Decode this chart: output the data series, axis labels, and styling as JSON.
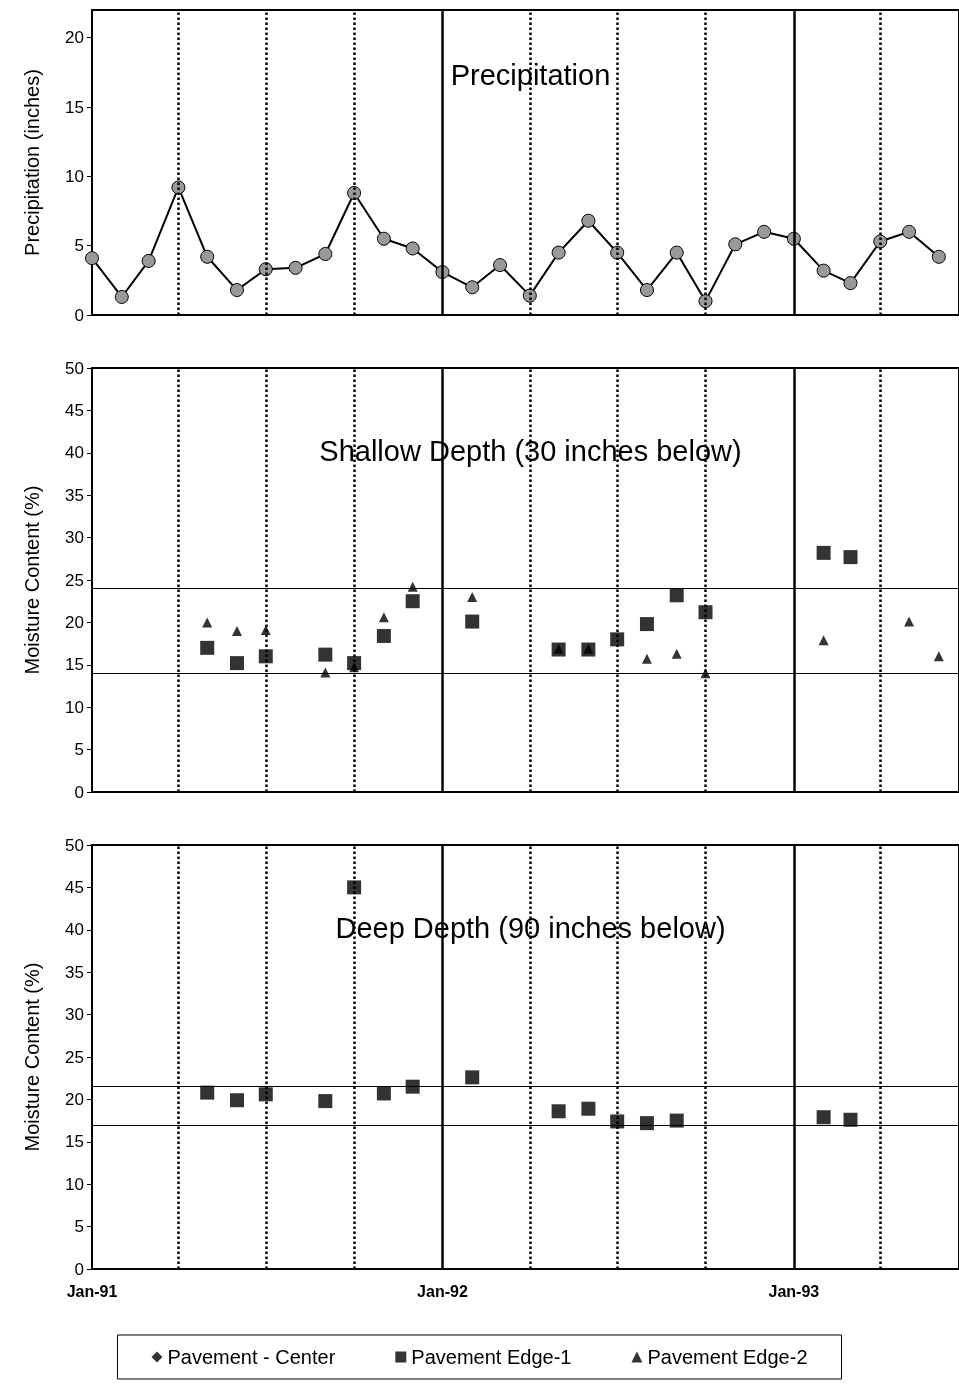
{
  "chart_data": [
    {
      "type": "line",
      "title": "Precipitation",
      "ylabel": "Precipitation (inches)",
      "xlim": [
        "1991-01",
        "1993-06-22"
      ],
      "ylim": [
        0,
        22
      ],
      "yticks": [
        0,
        5,
        10,
        15,
        20
      ],
      "tick_labels": "y",
      "grid": false,
      "legend": false,
      "ref_lines": [
        {
          "axis": "x",
          "value": "1991-04",
          "line_style": "dotted"
        },
        {
          "axis": "x",
          "value": "1991-07",
          "line_style": "dotted"
        },
        {
          "axis": "x",
          "value": "1991-10",
          "line_style": "dotted"
        },
        {
          "axis": "x",
          "value": "1992-01",
          "line_style": "solid"
        },
        {
          "axis": "x",
          "value": "1992-04",
          "line_style": "dotted"
        },
        {
          "axis": "x",
          "value": "1992-07",
          "line_style": "dotted"
        },
        {
          "axis": "x",
          "value": "1992-10",
          "line_style": "dotted"
        },
        {
          "axis": "x",
          "value": "1993-01",
          "line_style": "solid"
        },
        {
          "axis": "x",
          "value": "1993-04",
          "line_style": "dotted"
        }
      ],
      "series": [
        {
          "color": "#999999",
          "marker": "circle",
          "line_style": "solid",
          "x": [
            "1991-01",
            "1991-02",
            "1991-03",
            "1991-04",
            "1991-05",
            "1991-06",
            "1991-07",
            "1991-08",
            "1991-09",
            "1991-10",
            "1991-11",
            "1991-12",
            "1992-01",
            "1992-02",
            "1992-03",
            "1992-04",
            "1992-05",
            "1992-06",
            "1992-07",
            "1992-08",
            "1992-09",
            "1992-10",
            "1992-11",
            "1992-12",
            "1993-01",
            "1993-02",
            "1993-03",
            "1993-04",
            "1993-05",
            "1993-06"
          ],
          "values": [
            4.1,
            1.3,
            3.9,
            9.2,
            4.2,
            1.8,
            3.3,
            3.4,
            4.4,
            8.8,
            5.5,
            4.8,
            3.1,
            2.0,
            3.6,
            1.4,
            4.5,
            6.8,
            4.5,
            1.8,
            4.5,
            1.0,
            5.1,
            6.0,
            5.5,
            3.2,
            2.3,
            5.3,
            6.0,
            4.2
          ]
        }
      ]
    },
    {
      "type": "scatter",
      "title": "Shallow Depth (30 inches below)",
      "ylabel": "Moisture Content (%)",
      "xlim": [
        "1991-01",
        "1993-06-22"
      ],
      "ylim": [
        0,
        50
      ],
      "yticks": [
        0,
        5,
        10,
        15,
        20,
        25,
        30,
        35,
        40,
        45,
        50
      ],
      "tick_labels": "y",
      "grid": false,
      "legend": false,
      "ref_lines": [
        {
          "axis": "y",
          "value": 24,
          "line_style": "solid"
        },
        {
          "axis": "y",
          "value": 14,
          "line_style": "solid"
        },
        {
          "axis": "x",
          "value": "1991-04",
          "line_style": "dotted"
        },
        {
          "axis": "x",
          "value": "1991-07",
          "line_style": "dotted"
        },
        {
          "axis": "x",
          "value": "1991-10",
          "line_style": "dotted"
        },
        {
          "axis": "x",
          "value": "1992-01",
          "line_style": "solid"
        },
        {
          "axis": "x",
          "value": "1992-04",
          "line_style": "dotted"
        },
        {
          "axis": "x",
          "value": "1992-07",
          "line_style": "dotted"
        },
        {
          "axis": "x",
          "value": "1992-10",
          "line_style": "dotted"
        },
        {
          "axis": "x",
          "value": "1993-01",
          "line_style": "solid"
        },
        {
          "axis": "x",
          "value": "1993-04",
          "line_style": "dotted"
        }
      ],
      "series": [
        {
          "color": "#000000",
          "marker": "square",
          "x": [
            "1991-05",
            "1991-06",
            "1991-07",
            "1991-09",
            "1991-10",
            "1991-11",
            "1991-12",
            "1992-02",
            "1992-05",
            "1992-06",
            "1992-07",
            "1992-08",
            "1992-09",
            "1992-10",
            "1993-02",
            "1993-03"
          ],
          "values": [
            17.0,
            15.2,
            16.0,
            16.2,
            15.2,
            18.4,
            22.5,
            20.1,
            16.8,
            16.8,
            18.0,
            19.8,
            23.2,
            21.2,
            28.2,
            27.7
          ]
        },
        {
          "color": "#000000",
          "marker": "triangle",
          "x": [
            "1991-05",
            "1991-06",
            "1991-07",
            "1991-09",
            "1991-10",
            "1991-11",
            "1991-12",
            "1992-02",
            "1992-05",
            "1992-06",
            "1992-08",
            "1992-09",
            "1992-10",
            "1993-02",
            "1993-05",
            "1993-06"
          ],
          "values": [
            20.0,
            19.0,
            19.1,
            14.1,
            14.7,
            20.6,
            24.2,
            23.0,
            16.9,
            16.9,
            15.7,
            16.3,
            14.0,
            17.9,
            20.1,
            16.0
          ]
        }
      ]
    },
    {
      "type": "scatter",
      "title": "Deep Depth (90 inches below)",
      "ylabel": "Moisture Content (%)",
      "xlim": [
        "1991-01",
        "1993-06-22"
      ],
      "xticks": [
        {
          "value": "1991-01",
          "label": "Jan-91"
        },
        {
          "value": "1992-01",
          "label": "Jan-92"
        },
        {
          "value": "1993-01",
          "label": "Jan-93"
        }
      ],
      "ylim": [
        0,
        50
      ],
      "yticks": [
        0,
        5,
        10,
        15,
        20,
        25,
        30,
        35,
        40,
        45,
        50
      ],
      "grid": false,
      "legend": "bottom",
      "ref_lines": [
        {
          "axis": "y",
          "value": 21.5,
          "line_style": "solid"
        },
        {
          "axis": "y",
          "value": 17,
          "line_style": "solid"
        },
        {
          "axis": "x",
          "value": "1991-04",
          "line_style": "dotted"
        },
        {
          "axis": "x",
          "value": "1991-07",
          "line_style": "dotted"
        },
        {
          "axis": "x",
          "value": "1991-10",
          "line_style": "dotted"
        },
        {
          "axis": "x",
          "value": "1992-01",
          "line_style": "solid"
        },
        {
          "axis": "x",
          "value": "1992-04",
          "line_style": "dotted"
        },
        {
          "axis": "x",
          "value": "1992-07",
          "line_style": "dotted"
        },
        {
          "axis": "x",
          "value": "1992-10",
          "line_style": "dotted"
        },
        {
          "axis": "x",
          "value": "1993-01",
          "line_style": "solid"
        },
        {
          "axis": "x",
          "value": "1993-04",
          "line_style": "dotted"
        }
      ],
      "series": [
        {
          "name": "Pavement - Center",
          "color": "#000000",
          "marker": "diamond"
        },
        {
          "name": "Pavement Edge-1",
          "color": "#000000",
          "marker": "square",
          "x": [
            "1991-05",
            "1991-06",
            "1991-07",
            "1991-09",
            "1991-10",
            "1991-11",
            "1991-12",
            "1992-02",
            "1992-05",
            "1992-06",
            "1992-07",
            "1992-08",
            "1992-09",
            "1993-02",
            "1993-03"
          ],
          "values": [
            20.8,
            19.9,
            20.6,
            19.8,
            45.0,
            20.7,
            21.5,
            22.6,
            18.6,
            18.9,
            17.4,
            17.2,
            17.5,
            17.9,
            17.6
          ]
        },
        {
          "name": "Pavement Edge-2",
          "color": "#000000",
          "marker": "triangle"
        }
      ]
    }
  ]
}
